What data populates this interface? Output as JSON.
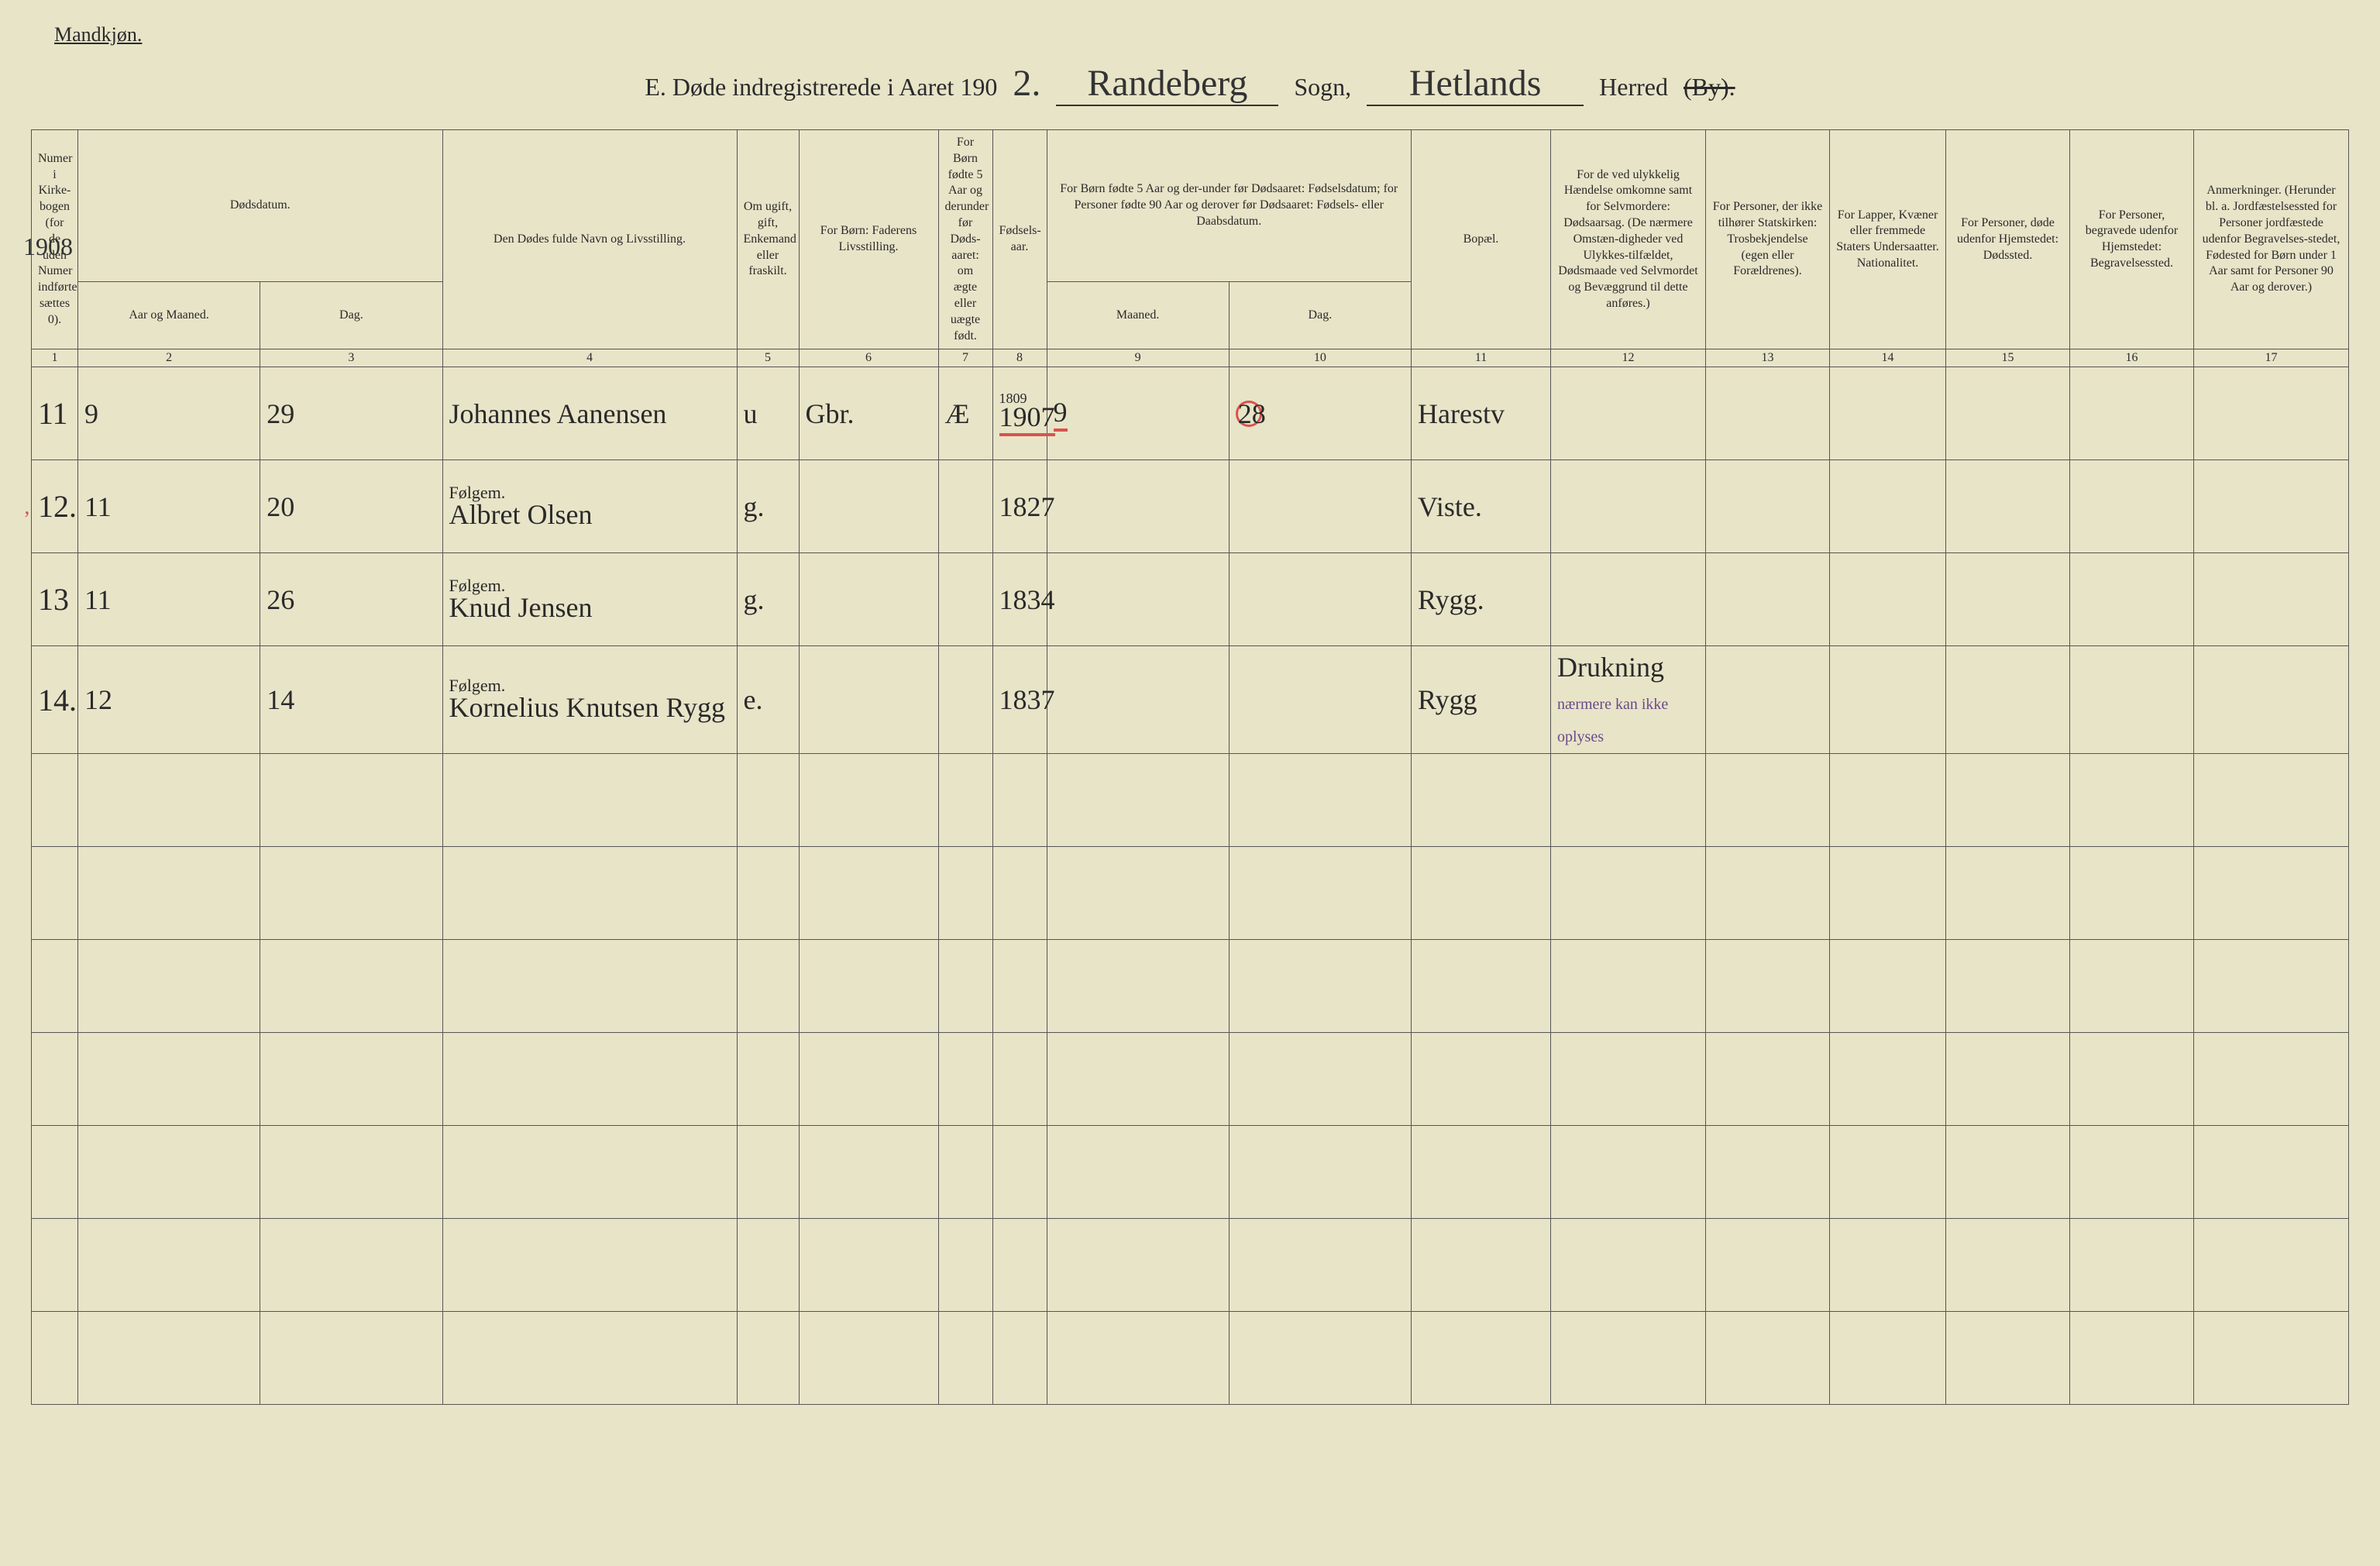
{
  "colors": {
    "paper": "#e8e4c8",
    "ink": "#2a2a2a",
    "red": "#d9534f",
    "purple": "#6a4a8a",
    "border": "#555555"
  },
  "header": {
    "gender_label": "Mandkjøn.",
    "title_prefix": "E.   Døde indregistrerede i Aaret 190",
    "year_suffix": "2.",
    "parish_handwritten": "Randeberg",
    "sogn_label": "Sogn,",
    "district_handwritten": "Hetlands",
    "herred_label": "Herred",
    "by_label_struck": "(By)."
  },
  "margin": {
    "year_note": "1908",
    "red_tick_row": "14"
  },
  "columns": {
    "c1": "Numer i Kirke-bogen (for de uden Numer indførte sættes 0).",
    "c2_group": "Dødsdatum.",
    "c2a": "Aar og Maaned.",
    "c2b": "Dag.",
    "c4": "Den Dødes fulde Navn og Livsstilling.",
    "c5": "Om ugift, gift, Enkemand eller fraskilt.",
    "c6": "For Børn: Faderens Livsstilling.",
    "c7": "For Børn fødte 5 Aar og derunder før Døds-aaret: om ægte eller uægte født.",
    "c8": "Fødsels-aar.",
    "c9_group": "For Børn fødte 5 Aar og der-under før Dødsaaret: Fødselsdatum; for Personer fødte 90 Aar og derover før Dødsaaret: Fødsels- eller Daabsdatum.",
    "c9a": "Maaned.",
    "c9b": "Dag.",
    "c11": "Bopæl.",
    "c12": "For de ved ulykkelig Hændelse omkomne samt for Selvmordere: Dødsaarsag. (De nærmere Omstæn-digheder ved Ulykkes-tilfældet, Dødsmaade ved Selvmordet og Bevæggrund til dette anføres.)",
    "c13": "For Personer, der ikke tilhører Statskirken: Trosbekjendelse (egen eller Forældrenes).",
    "c14": "For Lapper, Kvæner eller fremmede Staters Undersaatter. Nationalitet.",
    "c15": "For Personer, døde udenfor Hjemstedet: Dødssted.",
    "c16": "For Personer, begravede udenfor Hjemstedet: Begravelsessted.",
    "c17": "Anmerkninger. (Herunder bl. a. Jordfæstelsessted for Personer jordfæstede udenfor Begravelses-stedet, Fødested for Børn under 1 Aar samt for Personer 90 Aar og derover.)"
  },
  "colnums": [
    "1",
    "2",
    "3",
    "4",
    "5",
    "6",
    "7",
    "8",
    "9",
    "10",
    "11",
    "12",
    "13",
    "14",
    "15",
    "16",
    "17"
  ],
  "rows": [
    {
      "num": "11",
      "month": "9",
      "day": "29",
      "name": "Johannes Aanensen",
      "status": "u",
      "father": "Gbr.",
      "under5": "Æ",
      "birthyear": "1907",
      "birthyear_note_above": "1809",
      "birthmonth": "9",
      "birthday": "28",
      "birthday_red": true,
      "residence": "Harestv",
      "cause": "",
      "red_underline_birth": true
    },
    {
      "num": "12.",
      "month": "11",
      "day": "20",
      "name_prefix": "Følgem.",
      "name": "Albret Olsen",
      "status": "g.",
      "father": "",
      "under5": "",
      "birthyear": "1827",
      "birthmonth": "",
      "birthday": "",
      "residence": "Viste.",
      "cause": ""
    },
    {
      "num": "13",
      "month": "11",
      "day": "26",
      "name_prefix": "Følgem.",
      "name": "Knud Jensen",
      "status": "g.",
      "father": "",
      "under5": "",
      "birthyear": "1834",
      "birthmonth": "",
      "birthday": "",
      "residence": "Rygg.",
      "cause": ""
    },
    {
      "num": "14.",
      "month": "12",
      "day": "14",
      "name_prefix": "Følgem.",
      "name": "Kornelius Knutsen Rygg",
      "status": "e.",
      "father": "",
      "under5": "",
      "birthyear": "1837",
      "birthmonth": "",
      "birthday": "",
      "residence": "Rygg",
      "cause": "Drukning",
      "cause_note": "nærmere kan ikke oplyses"
    }
  ],
  "empty_row_count": 7
}
